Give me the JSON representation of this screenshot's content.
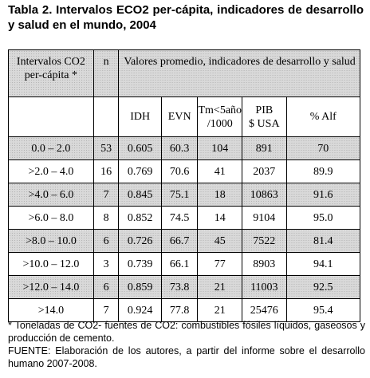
{
  "title": "Tabla 2.  Intervalos ECO2 per-cápita, indicadores de desarrollo y salud en el mundo, 2004",
  "table": {
    "header": [
      "Intervalos CO2\nper-cápita *",
      "n",
      "Valores promedio, indicadores de desarrollo y salud"
    ],
    "subheader": [
      "IDH",
      "EVN",
      "Tm<5año\n/1000",
      "PIB\n$ USA",
      "% Alf"
    ],
    "rows": [
      [
        "0.0 – 2.0",
        "53",
        "0.605",
        "60.3",
        "104",
        "891",
        "70"
      ],
      [
        ">2.0 – 4.0",
        "16",
        "0.769",
        "70.6",
        "41",
        "2037",
        "89.9"
      ],
      [
        ">4.0 – 6.0",
        "7",
        "0.845",
        "75.1",
        "18",
        "10863",
        "91.6"
      ],
      [
        ">6.0 – 8.0",
        "8",
        "0.852",
        "74.5",
        "14",
        "9104",
        "95.0"
      ],
      [
        ">8.0 – 10.0",
        "6",
        "0.726",
        "66.7",
        "45",
        "7522",
        "81.4"
      ],
      [
        ">10.0 – 12.0",
        "3",
        "0.739",
        "66.1",
        "77",
        "8903",
        "94.1"
      ],
      [
        ">12.0 – 14.0",
        "6",
        "0.859",
        "73.8",
        "21",
        "11003",
        "92.5"
      ],
      [
        ">14.0",
        "7",
        "0.924",
        "77.8",
        "21",
        "25476",
        "95.4"
      ]
    ]
  },
  "notes": [
    "* Toneladas de CO2- fuentes de CO2: combustibles fósiles líquidos, gaseosos y producción de cemento.",
    "FUENTE: Elaboración de los autores, a partir del informe sobre el desarrollo humano 2007-2008."
  ]
}
